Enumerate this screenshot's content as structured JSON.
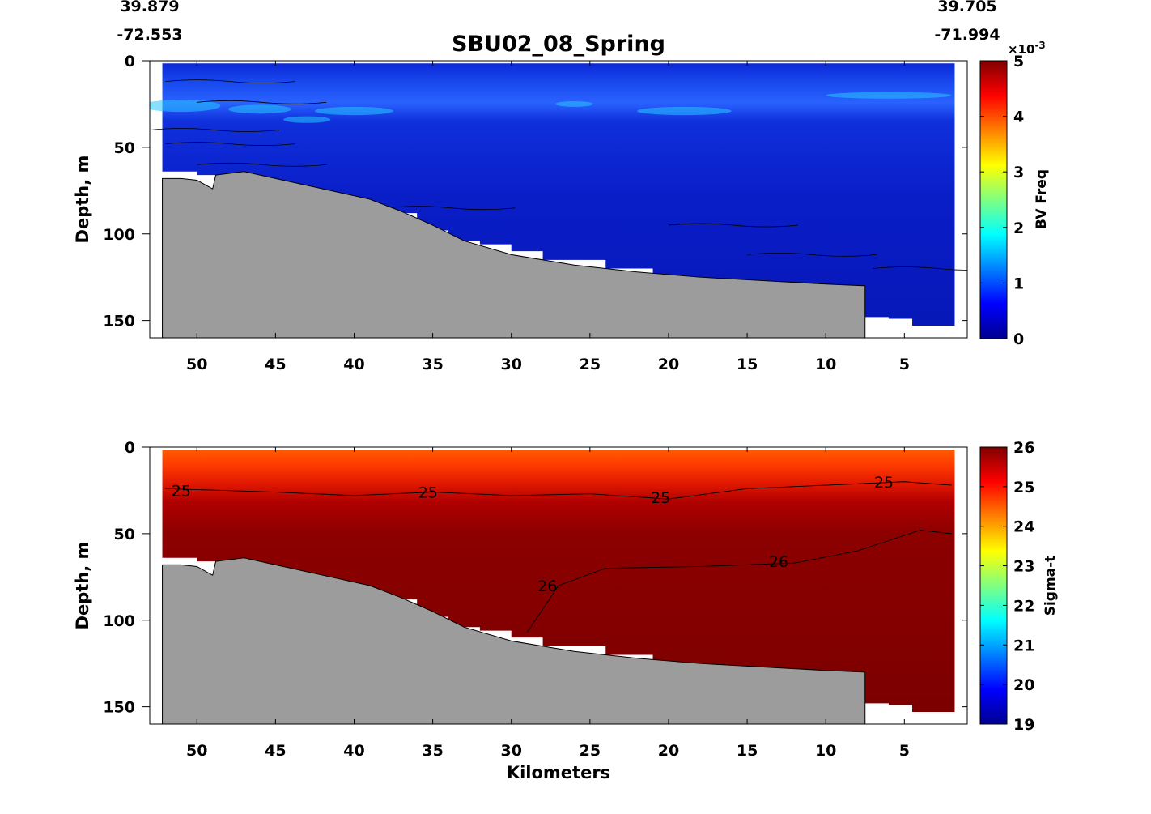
{
  "title": "SBU02_08_Spring",
  "xlabel": "Kilometers",
  "coords": {
    "left_lat": "39.879",
    "left_lon": "-72.553",
    "right_lat": "39.705",
    "right_lon": "-71.994"
  },
  "chart_data": [
    {
      "type": "heatmap",
      "name": "top-panel",
      "ylabel": "Depth, m",
      "xlim": [
        53,
        1
      ],
      "ylim": [
        0,
        160
      ],
      "xticks": [
        50,
        45,
        40,
        35,
        30,
        25,
        20,
        15,
        10,
        5
      ],
      "yticks": [
        0,
        50,
        100,
        150
      ],
      "colorbar": {
        "label": "BV Freq",
        "scale_label": "×10",
        "exponent": "-3",
        "range": [
          0,
          5
        ],
        "ticks": [
          0,
          1,
          2,
          3,
          4,
          5
        ],
        "colormap": "jet",
        "colors": [
          "#00008f",
          "#0000ff",
          "#0080ff",
          "#00ffff",
          "#80ff80",
          "#ffff00",
          "#ff8000",
          "#ff0000",
          "#800000"
        ]
      },
      "field_color": "#0a1ec8",
      "bottom_color": "#9c9c9c",
      "contour_labels": []
    },
    {
      "type": "heatmap",
      "name": "bottom-panel",
      "ylabel": "Depth, m",
      "xlim": [
        53,
        1
      ],
      "ylim": [
        0,
        160
      ],
      "xticks": [
        50,
        45,
        40,
        35,
        30,
        25,
        20,
        15,
        10,
        5
      ],
      "yticks": [
        0,
        50,
        100,
        150
      ],
      "colorbar": {
        "label": "Sigma-t",
        "range": [
          19,
          26
        ],
        "ticks": [
          19,
          20,
          21,
          22,
          23,
          24,
          25,
          26
        ],
        "colormap": "jet",
        "colors": [
          "#00008f",
          "#0000ff",
          "#0080ff",
          "#00ffff",
          "#80ff80",
          "#ffff00",
          "#ff8000",
          "#ff0000",
          "#800000"
        ]
      },
      "field_color": "#8b0000",
      "bottom_color": "#9c9c9c",
      "contour_labels": [
        {
          "text": "25",
          "x": 51.0,
          "y": 25
        },
        {
          "text": "25",
          "x": 35.3,
          "y": 26
        },
        {
          "text": "25",
          "x": 20.5,
          "y": 29
        },
        {
          "text": "25",
          "x": 6.3,
          "y": 20
        },
        {
          "text": "26",
          "x": 13.0,
          "y": 66
        },
        {
          "text": "26",
          "x": 27.7,
          "y": 80
        }
      ]
    }
  ],
  "bathymetry": {
    "km": [
      52.2,
      51.0,
      50.0,
      49.0,
      48.8,
      47.0,
      45.5,
      43.0,
      39.0,
      37.0,
      35.0,
      33.0,
      30.0,
      26.0,
      22.0,
      18.0,
      14.0,
      10.0,
      7.5
    ],
    "depth": [
      68,
      68,
      69,
      74,
      66,
      64,
      67,
      72,
      80,
      87,
      95,
      104,
      112,
      118,
      122,
      125,
      127,
      129,
      130
    ]
  },
  "data_coverage": {
    "km": [
      52.2,
      50.0,
      48.0,
      45.0,
      42.0,
      39.0,
      36.0,
      34.0,
      32.0,
      30.0,
      28.0,
      24.0,
      21.0,
      18.0,
      14.0,
      10.0,
      7.5,
      6.0,
      4.5,
      3.0,
      1.8
    ],
    "max_depth": [
      64,
      64,
      66,
      70,
      76,
      82,
      88,
      98,
      104,
      106,
      110,
      115,
      120,
      125,
      128,
      131,
      140,
      148,
      149,
      153,
      153
    ]
  }
}
